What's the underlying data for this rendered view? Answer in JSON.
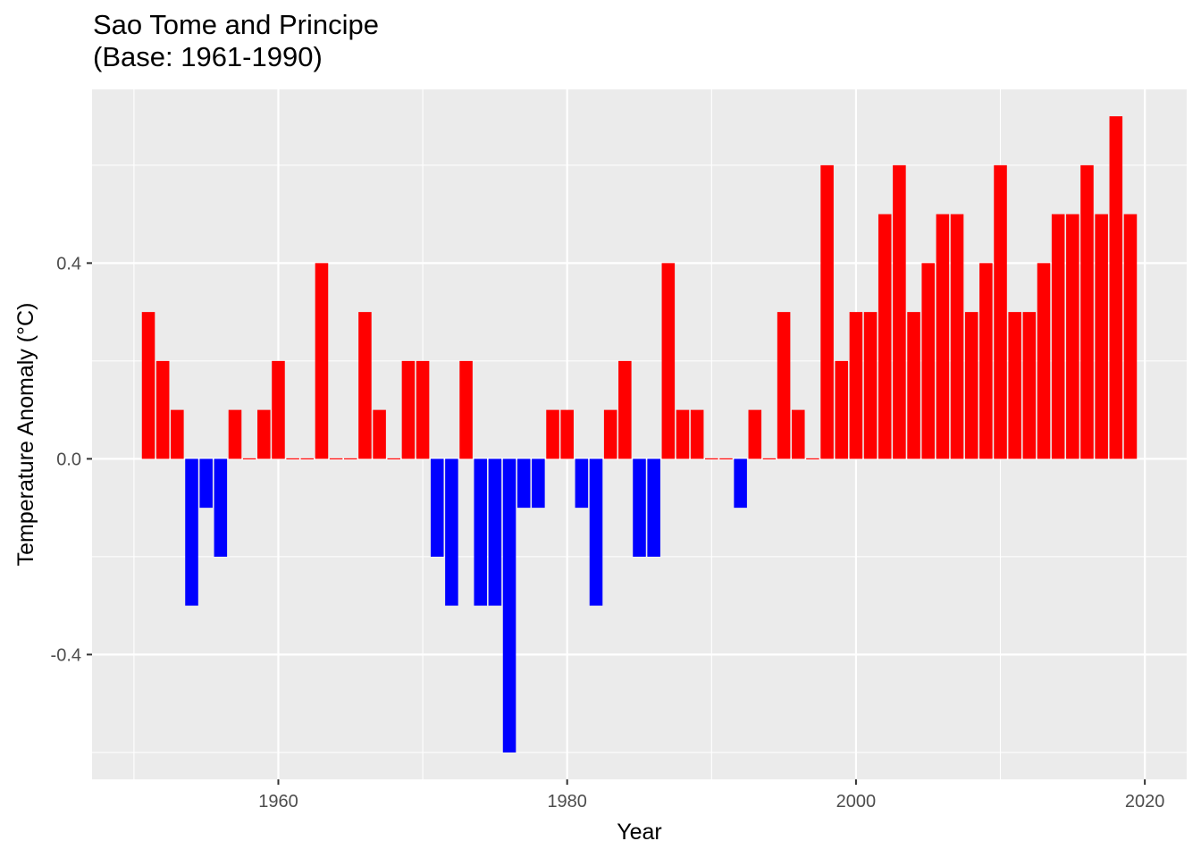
{
  "chart_data": {
    "type": "bar",
    "title": "Sao Tome and Principe",
    "subtitle": "(Base: 1961-1990)",
    "xlabel": "Year",
    "ylabel": "Temperature Anomaly (°C)",
    "x": [
      1951,
      1952,
      1953,
      1954,
      1955,
      1956,
      1957,
      1958,
      1959,
      1960,
      1961,
      1962,
      1963,
      1964,
      1965,
      1966,
      1967,
      1968,
      1969,
      1970,
      1971,
      1972,
      1973,
      1974,
      1975,
      1976,
      1977,
      1978,
      1979,
      1980,
      1981,
      1982,
      1983,
      1984,
      1985,
      1986,
      1987,
      1988,
      1989,
      1990,
      1991,
      1992,
      1993,
      1994,
      1995,
      1996,
      1997,
      1998,
      1999,
      2000,
      2001,
      2002,
      2003,
      2004,
      2005,
      2006,
      2007,
      2008,
      2009,
      2010,
      2011,
      2012,
      2013,
      2014,
      2015,
      2016,
      2017,
      2018,
      2019
    ],
    "values": [
      0.3,
      0.2,
      0.1,
      -0.3,
      -0.1,
      -0.2,
      0.1,
      0.0,
      0.1,
      0.2,
      0.0,
      0.0,
      0.4,
      0.0,
      0.0,
      0.3,
      0.1,
      0.0,
      0.2,
      0.2,
      -0.2,
      -0.3,
      0.2,
      -0.3,
      -0.3,
      -0.6,
      -0.1,
      -0.1,
      0.1,
      0.1,
      -0.1,
      -0.3,
      0.1,
      0.2,
      -0.2,
      -0.2,
      0.4,
      0.1,
      0.1,
      0.0,
      0.0,
      -0.1,
      0.1,
      0.0,
      0.3,
      0.1,
      0.0,
      0.6,
      0.2,
      0.3,
      0.3,
      0.5,
      0.6,
      0.3,
      0.4,
      0.5,
      0.5,
      0.3,
      0.4,
      0.6,
      0.3,
      0.3,
      0.4,
      0.5,
      0.5,
      0.6,
      0.5,
      0.7,
      0.5
    ],
    "x_ticks": [
      "1960",
      "1980",
      "2000",
      "2020"
    ],
    "y_ticks": [
      "-0.4",
      "0.0",
      "0.4"
    ],
    "xlim": [
      1947.1,
      2022.9
    ],
    "ylim": [
      -0.655,
      0.755
    ],
    "colors": {
      "positive": "#ff0000",
      "negative": "#0000ff",
      "panel": "#ebebeb",
      "grid": "#ffffff"
    },
    "grid": true,
    "legend": "none"
  }
}
